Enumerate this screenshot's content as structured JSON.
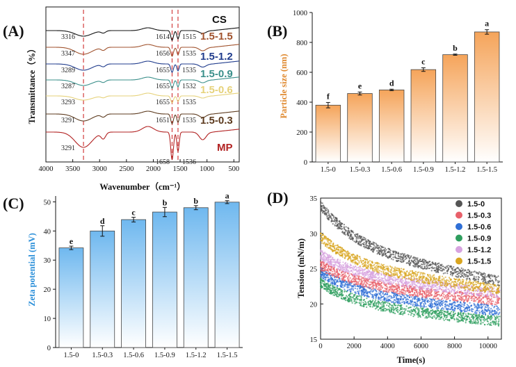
{
  "chart_data": [
    {
      "panel": "(A)",
      "type": "line",
      "xlabel": "Wavenumber（cm⁻¹）",
      "ylabel": "Transmittance（%）",
      "xlim": [
        4000,
        400
      ],
      "x_ticks": [
        "4000",
        "3500",
        "3000",
        "2500",
        "2000",
        "1500",
        "1000",
        "500"
      ],
      "reference_lines": [
        3300,
        1650,
        1540
      ],
      "series": [
        {
          "name": "CS",
          "color": "#111111",
          "peaks": [
            "3316",
            "1614",
            "1515"
          ]
        },
        {
          "name": "1.5-1.5",
          "color": "#a0522d",
          "peaks": [
            "3347",
            "1656",
            "1535"
          ]
        },
        {
          "name": "1.5-1.2",
          "color": "#1f3b8c",
          "peaks": [
            "3289",
            "1655",
            "1535"
          ]
        },
        {
          "name": "1.5-0.9",
          "color": "#3a8f8a",
          "peaks": [
            "3287",
            "1655",
            "1532"
          ]
        },
        {
          "name": "1.5-0.6",
          "color": "#e6d27a",
          "peaks": [
            "3293",
            "1655",
            "1535"
          ]
        },
        {
          "name": "1.5-0.3",
          "color": "#5c3a1e",
          "peaks": [
            "3291",
            "1651",
            "1535"
          ]
        },
        {
          "name": "MP",
          "color": "#b22222",
          "peaks": [
            "3291",
            "1658",
            "1536"
          ]
        }
      ]
    },
    {
      "panel": "(B)",
      "type": "bar",
      "ylabel": "Particle size (nm)",
      "ylim": [
        0,
        1000
      ],
      "y_ticks": [
        "0",
        "200",
        "400",
        "600",
        "800",
        "1000"
      ],
      "categories": [
        "1.5-0",
        "1.5-0.3",
        "1.5-0.6",
        "1.5-0.9",
        "1.5-1.2",
        "1.5-1.5"
      ],
      "values": [
        380,
        458,
        482,
        618,
        718,
        870
      ],
      "errors": [
        18,
        10,
        5,
        12,
        4,
        15
      ],
      "letters": [
        "f",
        "e",
        "d",
        "c",
        "b",
        "a"
      ],
      "color": "#f5a45a"
    },
    {
      "panel": "(C)",
      "type": "bar",
      "ylabel": "Zeta potential (mV)",
      "ylim": [
        0,
        52
      ],
      "y_ticks": [
        "0",
        "10",
        "20",
        "30",
        "40",
        "50"
      ],
      "categories": [
        "1.5-0",
        "1.5-0.3",
        "1.5-0.6",
        "1.5-0.9",
        "1.5-1.2",
        "1.5-1.5"
      ],
      "values": [
        34.2,
        40.0,
        43.9,
        46.5,
        48.0,
        49.9
      ],
      "errors": [
        0.6,
        1.8,
        0.8,
        1.6,
        0.7,
        0.5
      ],
      "letters": [
        "e",
        "d",
        "c",
        "b",
        "b",
        "a"
      ],
      "color": "#6fb8ef"
    },
    {
      "panel": "(D)",
      "type": "scatter",
      "xlabel": "Time(s)",
      "ylabel": "Tension (mN/m)",
      "xlim": [
        0,
        10800
      ],
      "ylim": [
        15,
        35
      ],
      "x_ticks": [
        "0",
        "2000",
        "4000",
        "6000",
        "8000",
        "10000"
      ],
      "y_ticks": [
        "15",
        "20",
        "25",
        "30",
        "35"
      ],
      "series": [
        {
          "name": "1.5-0",
          "color": "#555555",
          "start": 34.0,
          "end": 23.2
        },
        {
          "name": "1.5-0.3",
          "color": "#e8606a",
          "start": 25.5,
          "end": 20.5
        },
        {
          "name": "1.5-0.6",
          "color": "#2f6fd6",
          "start": 24.5,
          "end": 19.0
        },
        {
          "name": "1.5-0.9",
          "color": "#2e9e5e",
          "start": 23.0,
          "end": 17.5
        },
        {
          "name": "1.5-1.2",
          "color": "#d7a3e0",
          "start": 27.0,
          "end": 21.5
        },
        {
          "name": "1.5-1.5",
          "color": "#d9a520",
          "start": 29.5,
          "end": 22.0
        }
      ]
    }
  ]
}
